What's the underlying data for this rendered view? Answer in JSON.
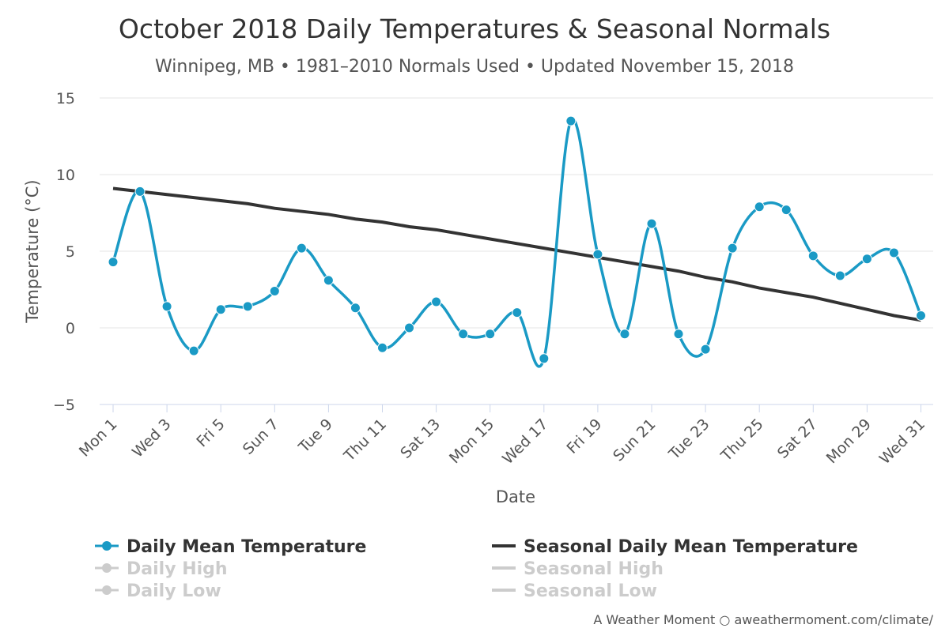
{
  "chart_data": {
    "type": "line",
    "title": "October 2018 Daily Temperatures & Seasonal Normals",
    "subtitle": "Winnipeg, MB • 1981–2010 Normals Used • Updated November 15, 2018",
    "xlabel": "Date",
    "ylabel": "Temperature (°C)",
    "ylim": [
      -5,
      15
    ],
    "yticks": [
      -5,
      0,
      5,
      10,
      15
    ],
    "grid": true,
    "legend_position": "bottom",
    "x": [
      "Mon 1",
      "Tue 2",
      "Wed 3",
      "Thu 4",
      "Fri 5",
      "Sat 6",
      "Sun 7",
      "Mon 8",
      "Tue 9",
      "Wed 10",
      "Thu 11",
      "Fri 12",
      "Sat 13",
      "Sun 14",
      "Mon 15",
      "Tue 16",
      "Wed 17",
      "Thu 18",
      "Fri 19",
      "Sat 20",
      "Sun 21",
      "Mon 22",
      "Tue 23",
      "Wed 24",
      "Thu 25",
      "Fri 26",
      "Sat 27",
      "Sun 28",
      "Mon 29",
      "Tue 30",
      "Wed 31"
    ],
    "x_tick_labels": [
      "Mon 1",
      "Wed 3",
      "Fri 5",
      "Sun 7",
      "Tue 9",
      "Thu 11",
      "Sat 13",
      "Mon 15",
      "Wed 17",
      "Fri 19",
      "Sun 21",
      "Tue 23",
      "Thu 25",
      "Sat 27",
      "Mon 29",
      "Wed 31"
    ],
    "series": [
      {
        "name": "Daily Mean Temperature",
        "color": "#1a9ac5",
        "visible": true,
        "markers": true,
        "values": [
          4.3,
          8.9,
          1.4,
          -1.5,
          1.2,
          1.4,
          2.4,
          5.2,
          3.1,
          1.3,
          -1.3,
          0.0,
          1.7,
          -0.4,
          -0.4,
          1.0,
          -2.0,
          13.5,
          4.8,
          -0.4,
          6.8,
          -0.4,
          -1.4,
          5.2,
          7.9,
          7.7,
          4.7,
          3.4,
          4.5,
          4.9,
          0.8
        ]
      },
      {
        "name": "Seasonal Daily Mean Temperature",
        "color": "#333333",
        "visible": true,
        "markers": false,
        "values": [
          9.1,
          8.9,
          8.7,
          8.5,
          8.3,
          8.1,
          7.8,
          7.6,
          7.4,
          7.1,
          6.9,
          6.6,
          6.4,
          6.1,
          5.8,
          5.5,
          5.2,
          4.9,
          4.6,
          4.3,
          4.0,
          3.7,
          3.3,
          3.0,
          2.6,
          2.3,
          2.0,
          1.6,
          1.2,
          0.8,
          0.5
        ]
      }
    ],
    "hidden_series": [
      {
        "name": "Daily High",
        "visible": false,
        "markers": true
      },
      {
        "name": "Daily Low",
        "visible": false,
        "markers": true
      },
      {
        "name": "Seasonal High",
        "visible": false,
        "markers": false
      },
      {
        "name": "Seasonal Low",
        "visible": false,
        "markers": false
      }
    ],
    "legend_hidden_color": "#cccccc",
    "credit": "A Weather Moment ○ aweathermoment.com/climate/"
  }
}
